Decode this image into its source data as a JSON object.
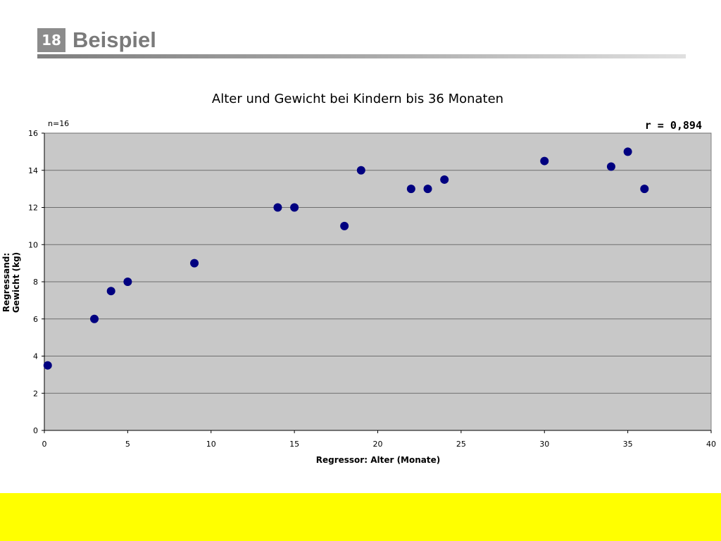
{
  "slide": {
    "number": "18",
    "title": "Beispiel",
    "accent_gray": "#8c8c8c",
    "footer_color": "#ffff00"
  },
  "chart_data": {
    "type": "scatter",
    "title": "Alter und Gewicht bei Kindern bis 36 Monaten",
    "xlabel": "Regressor: Alter (Monate)",
    "ylabel_lines": [
      "Regressand:",
      "Gewicht (kg)"
    ],
    "annotation_n": "n=16",
    "annotation_r": "r = 0,894",
    "xlim": [
      0,
      40
    ],
    "ylim": [
      0,
      16
    ],
    "xticks": [
      0,
      5,
      10,
      15,
      20,
      25,
      30,
      35,
      40
    ],
    "yticks": [
      0,
      2,
      4,
      6,
      8,
      10,
      12,
      14,
      16
    ],
    "grid": true,
    "plot_background": "#c8c8c8",
    "marker_color": "#000080",
    "points": [
      {
        "x": 0.2,
        "y": 3.5
      },
      {
        "x": 3,
        "y": 6
      },
      {
        "x": 4,
        "y": 7.5
      },
      {
        "x": 5,
        "y": 8
      },
      {
        "x": 9,
        "y": 9
      },
      {
        "x": 14,
        "y": 12
      },
      {
        "x": 15,
        "y": 12
      },
      {
        "x": 18,
        "y": 11
      },
      {
        "x": 19,
        "y": 14
      },
      {
        "x": 22,
        "y": 13
      },
      {
        "x": 23,
        "y": 13
      },
      {
        "x": 24,
        "y": 13.5
      },
      {
        "x": 30,
        "y": 14.5
      },
      {
        "x": 34,
        "y": 14.2
      },
      {
        "x": 35,
        "y": 15
      },
      {
        "x": 36,
        "y": 13
      }
    ]
  }
}
